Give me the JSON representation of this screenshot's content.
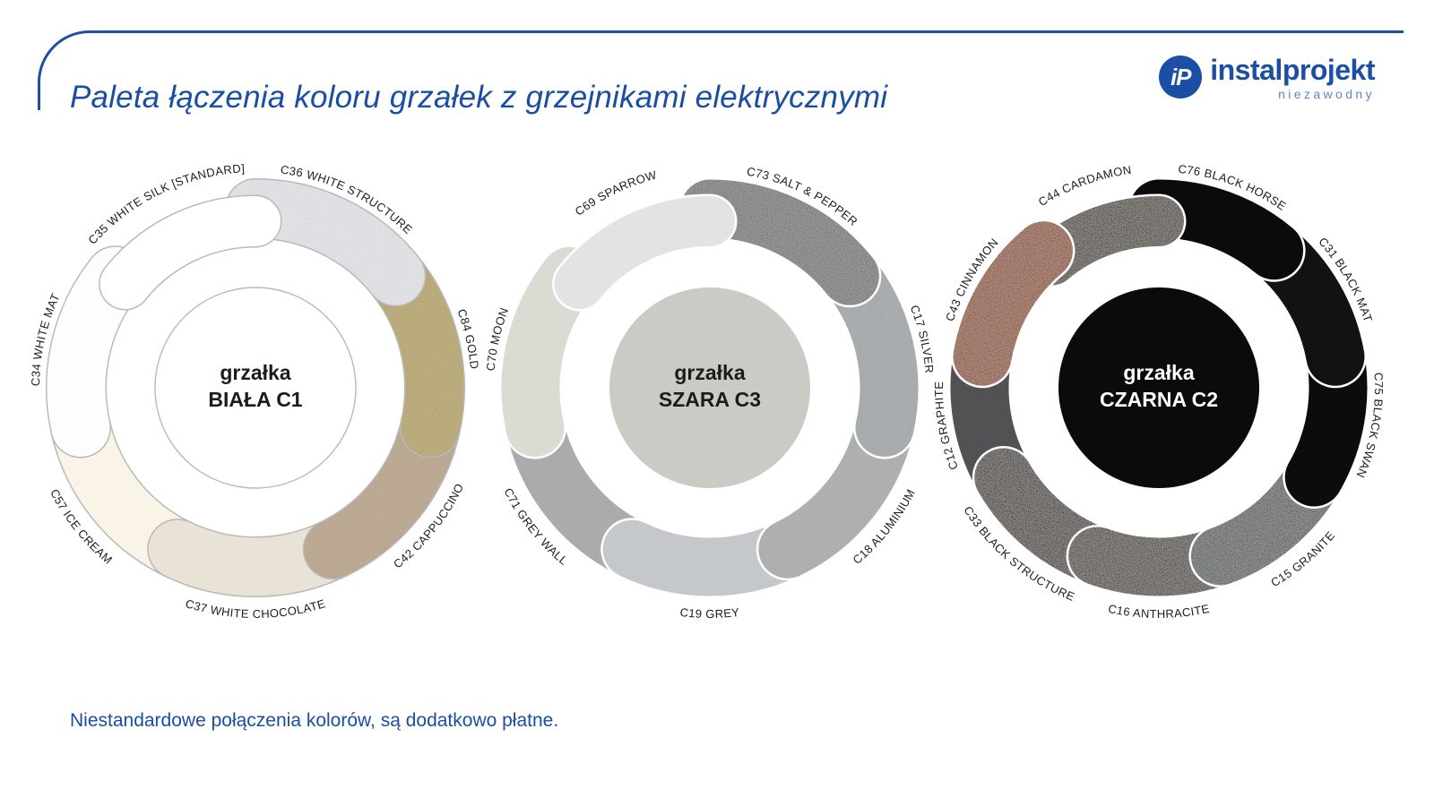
{
  "header": {
    "title": "Paleta łączenia koloru grzałek z grzejnikami elektrycznymi",
    "accent_color": "#1d4fa2",
    "logo": {
      "monogram": "iP",
      "brand": "instalprojekt",
      "tagline": "niezawodny",
      "brand_color": "#1b4fa5",
      "tagline_color": "#6286c5"
    }
  },
  "footer": {
    "note": "Niestandardowe połączenia kolorów, są dodatkowo płatne."
  },
  "donuts": [
    {
      "id": "biala-c1",
      "center": {
        "line1": "grzałka",
        "line2": "BIAŁA C1",
        "fill": "#ffffff",
        "text_color": "#1c1c1c",
        "stroke": "#b9b9b9"
      },
      "separator": {
        "color": "#b9b9b9",
        "width": 3
      },
      "segments": [
        {
          "code": "C36",
          "label": "C36 WHITE STRUCTURE",
          "color": "#e9ebf1",
          "textured": true,
          "inset": false
        },
        {
          "code": "C84",
          "label": "C84 GOLD",
          "color": "#b3a04c",
          "textured": true,
          "inset": false
        },
        {
          "code": "C42",
          "label": "C42 CAPPUCCINO",
          "color": "#b59d7c",
          "textured": true,
          "inset": false
        },
        {
          "code": "C37",
          "label": "C37 WHITE CHOCOLATE",
          "color": "#e9e3d6",
          "textured": false,
          "inset": false
        },
        {
          "code": "C57",
          "label": "C57 ICE CREAM",
          "color": "#faf3e7",
          "textured": false,
          "inset": false
        },
        {
          "code": "C34",
          "label": "C34 WHITE MAT",
          "color": "#fdfdfd",
          "textured": false,
          "inset": false
        },
        {
          "code": "C35",
          "label": "C35 WHITE SILK [STANDARD]",
          "color": "#ffffff",
          "textured": false,
          "inset": true
        }
      ],
      "paint_order": [
        4,
        5,
        3,
        2,
        1,
        0,
        6
      ]
    },
    {
      "id": "szara-c3",
      "center": {
        "line1": "grzałka",
        "line2": "SZARA C3",
        "fill": "#cbcbc5",
        "text_color": "#1c1c1c",
        "stroke": null
      },
      "separator": {
        "color": "#ffffff",
        "width": 5
      },
      "segments": [
        {
          "code": "C73",
          "label": "C73 SALT & PEPPER",
          "color": "#6d6e70",
          "textured": true,
          "inset": false
        },
        {
          "code": "C17",
          "label": "C17 SILVER",
          "color": "#9aa1a6",
          "textured": true,
          "inset": false
        },
        {
          "code": "C18",
          "label": "C18 ALUMINIUM",
          "color": "#a4a7a9",
          "textured": true,
          "inset": false
        },
        {
          "code": "C19",
          "label": "C19 GREY",
          "color": "#c5c8ca",
          "textured": false,
          "inset": false
        },
        {
          "code": "C71",
          "label": "C71 GREY WALL",
          "color": "#ababab",
          "textured": false,
          "inset": false
        },
        {
          "code": "C70",
          "label": "C70 MOON",
          "color": "#dcdbd3",
          "textured": false,
          "inset": false
        },
        {
          "code": "C69",
          "label": "C69 SPARROW",
          "color": "#e2e3e5",
          "textured": false,
          "inset": true
        }
      ],
      "paint_order": [
        4,
        5,
        3,
        2,
        1,
        0,
        6
      ]
    },
    {
      "id": "czarna-c2",
      "center": {
        "line1": "grzałka",
        "line2": "CZARNA C2",
        "fill": "#0b0b0c",
        "text_color": "#ffffff",
        "stroke": null
      },
      "separator": {
        "color": "#ffffff",
        "width": 5
      },
      "segments": [
        {
          "code": "C76",
          "label": "C76 BLACK HORSE",
          "color": "#0b0b0b",
          "textured": false,
          "inset": false
        },
        {
          "code": "C31",
          "label": "C31 BLACK MAT",
          "color": "#121212",
          "textured": false,
          "inset": false
        },
        {
          "code": "C75",
          "label": "C75 BLACK SWAN",
          "color": "#0c0c0e",
          "textured": false,
          "inset": false
        },
        {
          "code": "C15",
          "label": "C15 GRANITE",
          "color": "#4e555c",
          "textured": true,
          "inset": false
        },
        {
          "code": "C16",
          "label": "C16 ANTHRACITE",
          "color": "#3e3634",
          "textured": true,
          "inset": false
        },
        {
          "code": "C33",
          "label": "C33 BLACK STRUCTURE",
          "color": "#2f2b29",
          "textured": true,
          "inset": false
        },
        {
          "code": "C12",
          "label": "C12 GRAPHITE",
          "color": "#525254",
          "textured": false,
          "inset": false
        },
        {
          "code": "C43",
          "label": "C43 CINNAMON",
          "color": "#8c4515",
          "textured": true,
          "inset": false
        },
        {
          "code": "C44",
          "label": "C44 CARDAMON",
          "color": "#3a332c",
          "textured": true,
          "inset": true
        }
      ],
      "paint_order": [
        6,
        5,
        4,
        3,
        2,
        1,
        0,
        8,
        7
      ]
    }
  ]
}
